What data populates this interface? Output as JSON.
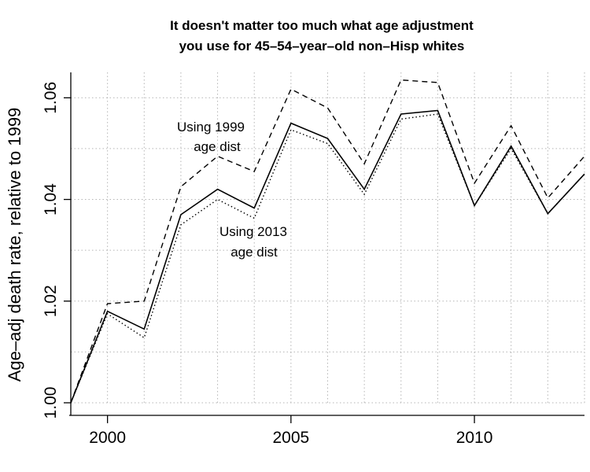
{
  "chart_data": {
    "type": "line",
    "title": [
      "It doesn't matter too much what age adjustment",
      "you use for 45–54–year–old non–Hisp whites"
    ],
    "xlabel": "",
    "ylabel": "Age–adj death rate, relative to 1999",
    "xlim": [
      1999,
      2013
    ],
    "ylim": [
      1.0,
      1.065
    ],
    "grid": true,
    "x_ticks": [
      2000,
      2005,
      2010
    ],
    "y_ticks": [
      1.0,
      1.02,
      1.04,
      1.06
    ],
    "y_tick_labels": [
      "1.00",
      "1.02",
      "1.04",
      "1.06"
    ],
    "x_tick_labels": [
      "2000",
      "2005",
      "2010"
    ],
    "x": [
      1999,
      2000,
      2001,
      2002,
      2003,
      2004,
      2005,
      2006,
      2007,
      2008,
      2009,
      2010,
      2011,
      2012,
      2013
    ],
    "series": [
      {
        "style": "dashed",
        "values": [
          1.0,
          1.0195,
          1.02,
          1.0425,
          1.0485,
          1.0455,
          1.0617,
          1.058,
          1.047,
          1.0635,
          1.063,
          1.0432,
          1.0545,
          1.0403,
          1.0485
        ]
      },
      {
        "style": "solid",
        "values": [
          1.0,
          1.018,
          1.0145,
          1.037,
          1.042,
          1.0383,
          1.055,
          1.052,
          1.042,
          1.0568,
          1.0575,
          1.0388,
          1.0505,
          1.0372,
          1.045
        ]
      },
      {
        "style": "dotted",
        "values": [
          1.0,
          1.0175,
          1.0128,
          1.035,
          1.04,
          1.0363,
          1.0537,
          1.051,
          1.041,
          1.0558,
          1.0568,
          1.0388,
          1.05,
          1.0372,
          1.045
        ]
      }
    ],
    "annotations": [
      {
        "lines": [
          "Using 1999",
          "age dist"
        ]
      },
      {
        "lines": [
          "Using 2013",
          "age dist"
        ]
      }
    ]
  }
}
